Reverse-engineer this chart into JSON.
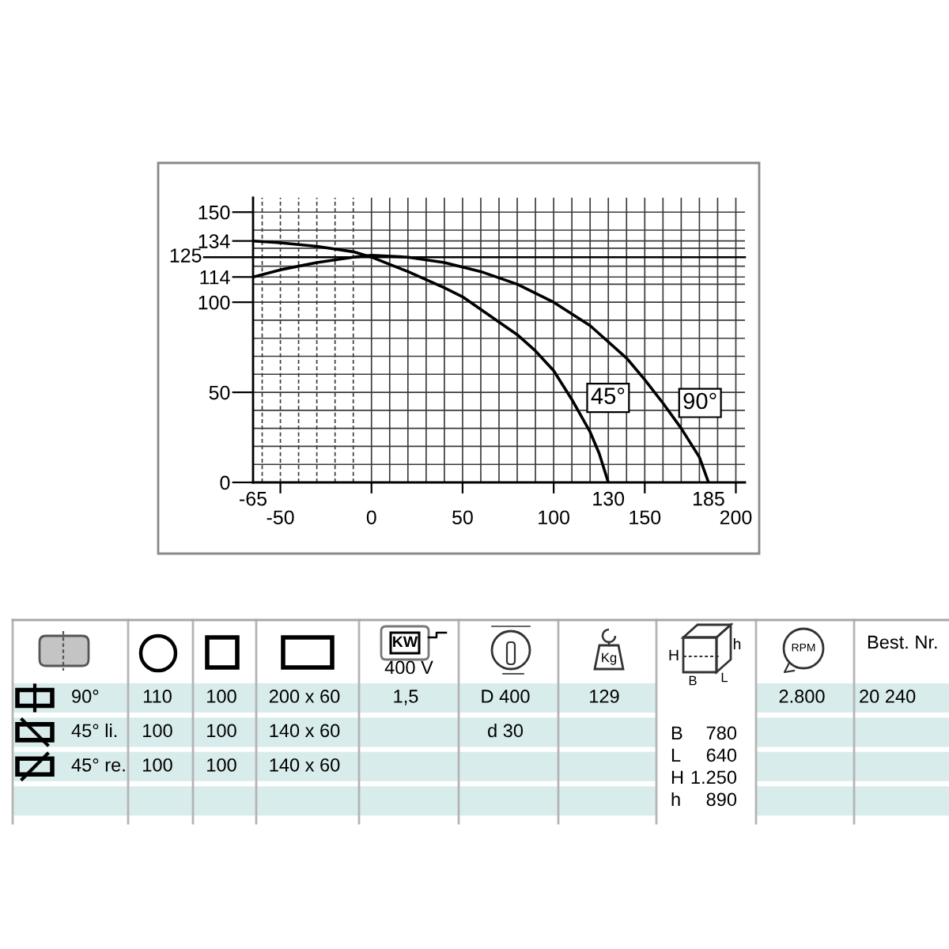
{
  "chart_data": [
    {
      "type": "line",
      "xlim": [
        -65,
        205
      ],
      "ylim": [
        0,
        158
      ],
      "xticks": [
        {
          "value": -60,
          "label": null
        },
        -50,
        {
          "value": -40,
          "label": null
        },
        {
          "value": -30,
          "label": null
        },
        {
          "value": -20,
          "label": null
        },
        {
          "value": -10,
          "label": null
        },
        0,
        {
          "value": 10,
          "label": null
        },
        {
          "value": 20,
          "label": null
        },
        {
          "value": 30,
          "label": null
        },
        {
          "value": 40,
          "label": null
        },
        50,
        {
          "value": 60,
          "label": null
        },
        {
          "value": 70,
          "label": null
        },
        {
          "value": 80,
          "label": null
        },
        {
          "value": 90,
          "label": null
        },
        100,
        {
          "value": 110,
          "label": null
        },
        {
          "value": 120,
          "label": null
        },
        {
          "value": 130,
          "label": null
        },
        {
          "value": 140,
          "label": null
        },
        150,
        {
          "value": 160,
          "label": null
        },
        {
          "value": 170,
          "label": null
        },
        {
          "value": 180,
          "label": null
        },
        {
          "value": 190,
          "label": null
        },
        200
      ],
      "yticks": [
        0,
        {
          "value": 10,
          "label": null
        },
        {
          "value": 20,
          "label": null
        },
        {
          "value": 30,
          "label": null
        },
        {
          "value": 40,
          "label": null
        },
        50,
        {
          "value": 60,
          "label": null
        },
        {
          "value": 70,
          "label": null
        },
        {
          "value": 80,
          "label": null
        },
        {
          "value": 90,
          "label": null
        },
        100,
        {
          "value": 110,
          "label": null
        },
        114,
        {
          "value": 120,
          "label": null
        },
        {
          "value": 130,
          "label": null
        },
        134,
        {
          "value": 140,
          "label": null
        },
        150
      ],
      "grid": true,
      "ref_lines": [
        {
          "axis": "y",
          "value": 125,
          "label": "125"
        }
      ],
      "annotations": [
        "-65",
        {
          "text": "130",
          "x": 130,
          "y": 0
        },
        {
          "text": "185",
          "x": 185,
          "y": 0
        }
      ],
      "series": [
        {
          "name": "90°",
          "color": "#000000",
          "x": [
            -65,
            -50,
            -30,
            -10,
            0,
            20,
            40,
            60,
            80,
            100,
            120,
            140,
            150,
            160,
            170,
            180,
            185
          ],
          "values": [
            114,
            118,
            122,
            125,
            126,
            125,
            122,
            117,
            110,
            100,
            87,
            69,
            57,
            44,
            30,
            14,
            0
          ]
        },
        {
          "name": "45°",
          "color": "#000000",
          "x": [
            -65,
            -50,
            -30,
            -10,
            0,
            20,
            40,
            50,
            60,
            80,
            90,
            100,
            110,
            120,
            125,
            130
          ],
          "values": [
            134,
            133,
            131,
            128,
            125,
            117,
            108,
            103,
            96,
            82,
            73,
            62,
            46,
            28,
            16,
            0
          ]
        }
      ]
    },
    {
      "type": "other",
      "categories": [
        null,
        null,
        null,
        "400 V",
        null,
        null,
        null,
        null,
        "Best. Nr."
      ],
      "y_categories": [
        "90°",
        "45° li.",
        "45° re.",
        null
      ],
      "cell_labels": [
        [
          "110",
          "100",
          "200 x 60",
          "1,5",
          "D 400",
          "129",
          null,
          "2.800",
          "20 240"
        ],
        [
          "100",
          "100",
          "140 x 60",
          null,
          "d 30",
          null,
          "B 780\nL 640\nH 1.250\nh 890",
          null,
          null
        ],
        [
          "100",
          "100",
          "140 x 60",
          null,
          null,
          null,
          null,
          null,
          null
        ],
        [
          null,
          null,
          null,
          null,
          null,
          null,
          null,
          null,
          null
        ]
      ],
      "annotations": [
        "KW",
        "Kg",
        "RPM",
        "H",
        "h",
        "B",
        "L"
      ]
    }
  ]
}
